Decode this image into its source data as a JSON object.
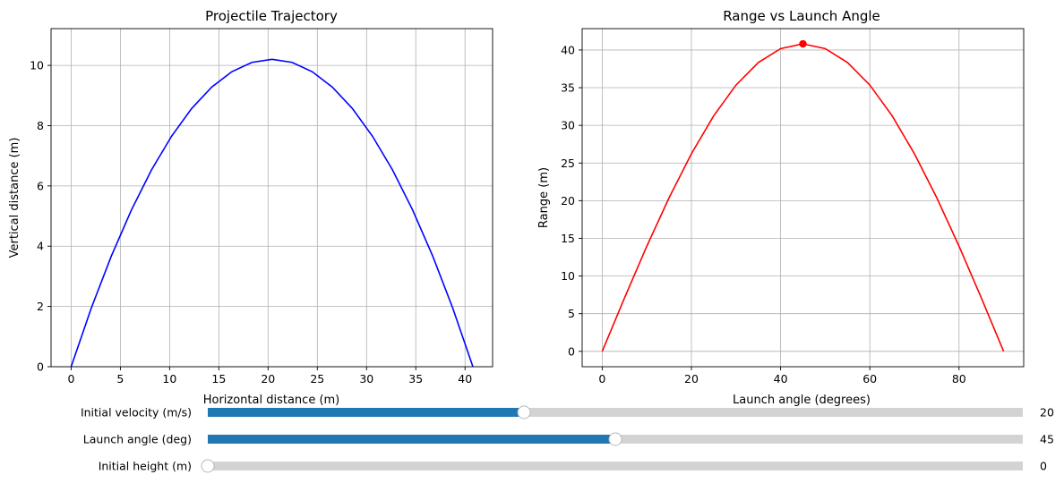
{
  "chart_data": [
    {
      "type": "line",
      "title": "Projectile Trajectory",
      "xlabel": "Horizontal distance (m)",
      "ylabel": "Vertical distance (m)",
      "xlim": [
        -2.04,
        42.8
      ],
      "ylim": [
        0,
        11.22
      ],
      "xticks": [
        0,
        5,
        10,
        15,
        20,
        25,
        30,
        35,
        40
      ],
      "yticks": [
        0,
        2,
        4,
        6,
        8,
        10
      ],
      "grid": true,
      "series": [
        {
          "color": "#0000ff",
          "x": [
            0,
            2.04,
            4.08,
            6.12,
            8.16,
            10.2,
            12.24,
            14.28,
            16.32,
            18.36,
            20.4,
            22.44,
            24.48,
            26.52,
            28.56,
            30.6,
            32.64,
            34.68,
            36.72,
            38.76,
            40.8
          ],
          "y": [
            0,
            1.94,
            3.67,
            5.2,
            6.53,
            7.65,
            8.57,
            9.28,
            9.79,
            10.1,
            10.2,
            10.1,
            9.79,
            9.28,
            8.57,
            7.65,
            6.53,
            5.2,
            3.67,
            1.94,
            0
          ]
        }
      ]
    },
    {
      "type": "line",
      "title": "Range vs Launch Angle",
      "xlabel": "Launch angle (degrees)",
      "ylabel": "Range (m)",
      "xlim": [
        -4.5,
        94.5
      ],
      "ylim": [
        -2.04,
        42.84
      ],
      "xticks": [
        0,
        20,
        40,
        60,
        80
      ],
      "yticks": [
        0,
        5,
        10,
        15,
        20,
        25,
        30,
        35,
        40
      ],
      "grid": true,
      "series": [
        {
          "color": "#ff0000",
          "x": [
            0,
            5,
            10,
            15,
            20,
            25,
            30,
            35,
            40,
            45,
            50,
            55,
            60,
            65,
            70,
            75,
            80,
            85,
            90
          ],
          "y": [
            0,
            7.09,
            13.96,
            20.4,
            26.23,
            31.27,
            35.35,
            38.34,
            40.19,
            40.82,
            40.19,
            38.34,
            35.35,
            31.27,
            26.23,
            20.4,
            13.96,
            7.09,
            0
          ]
        }
      ],
      "marker": {
        "x": 45,
        "y": 40.82,
        "color": "#ff0000"
      }
    }
  ],
  "sliders": [
    {
      "label": "Initial velocity (m/s)",
      "value": 20,
      "value_text": "20",
      "fraction": 0.388,
      "color": "#1f77b4"
    },
    {
      "label": "Launch angle (deg)",
      "value": 45,
      "value_text": "45",
      "fraction": 0.5,
      "color": "#1f77b4"
    },
    {
      "label": "Initial height (m)",
      "value": 0,
      "value_text": "0",
      "fraction": 0.0,
      "color": "#1f77b4"
    }
  ]
}
